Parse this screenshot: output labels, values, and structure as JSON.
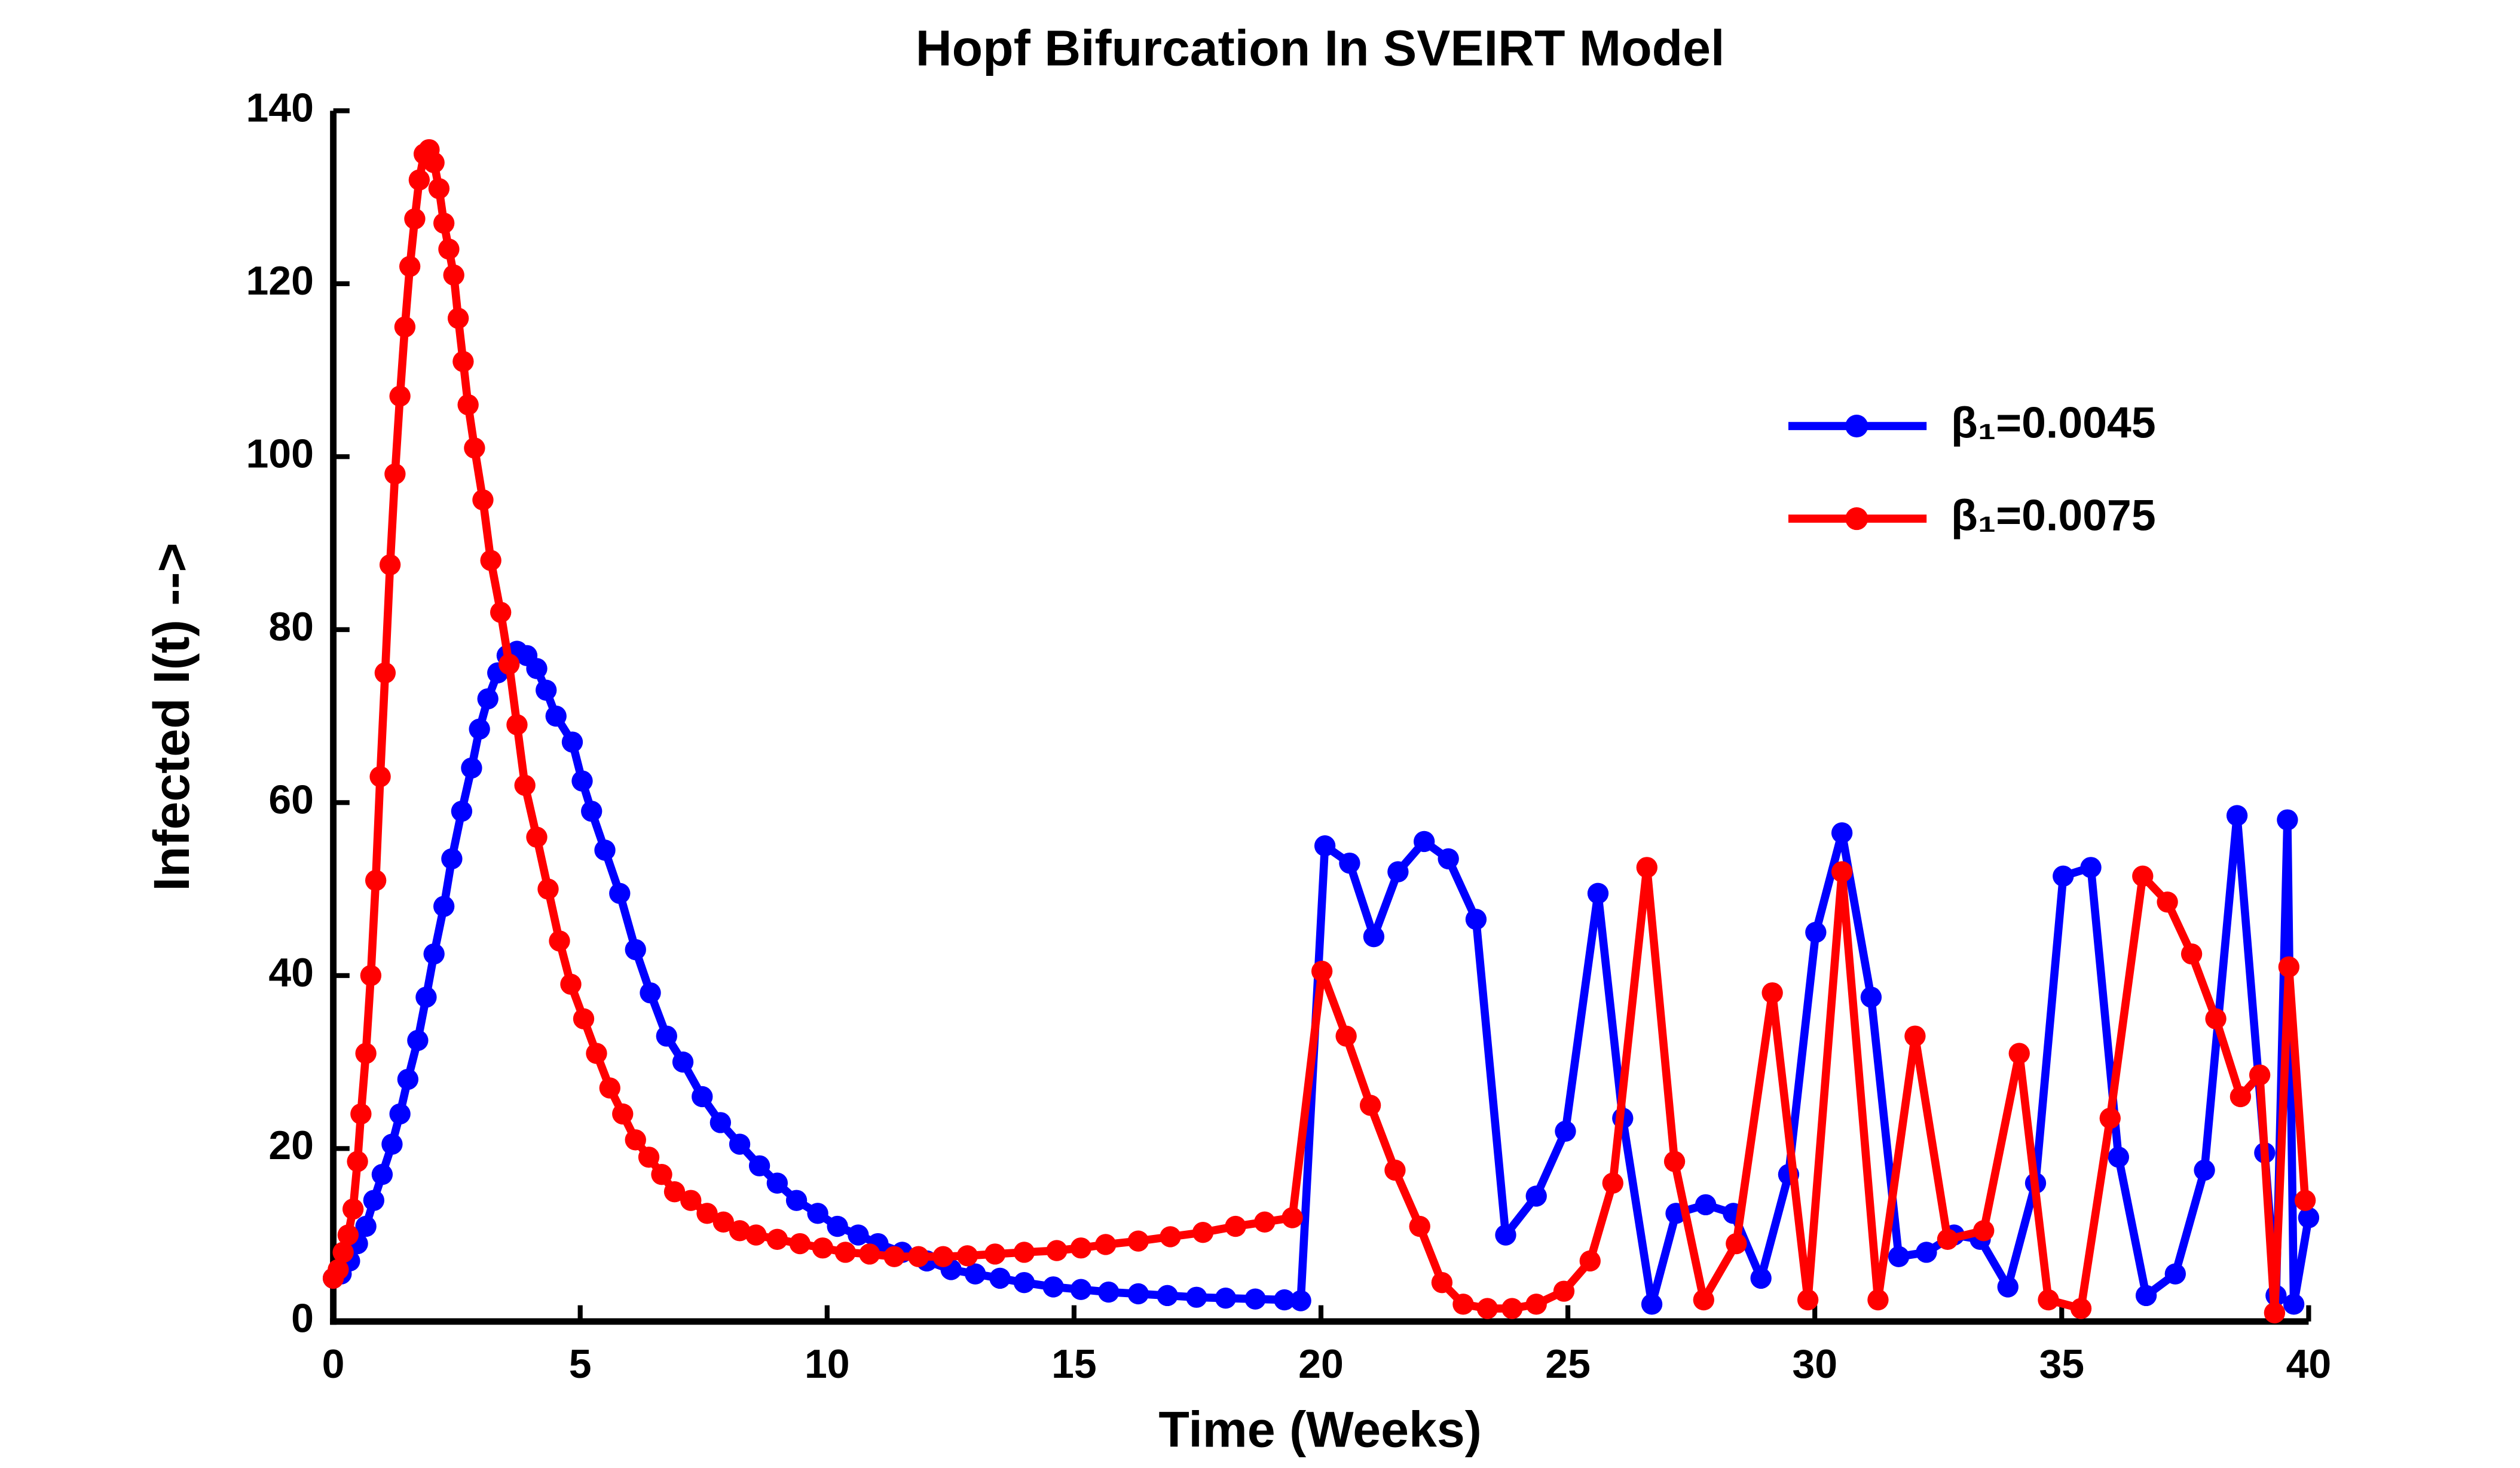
{
  "chart_data": {
    "type": "line",
    "title": "Hopf Bifurcation In SVEIRT Model",
    "x_label": "Time (Weeks)",
    "y_label": "Infected I(t) -->",
    "xlim": [
      0,
      40
    ],
    "xticks": [
      0,
      5,
      10,
      15,
      20,
      25,
      30,
      35,
      40
    ],
    "ylim": [
      0,
      140
    ],
    "yticks": [
      0,
      20,
      40,
      60,
      80,
      100,
      120,
      140
    ],
    "legend_position": "upper right",
    "grid": false,
    "series": [
      {
        "name": "β₁=0.0045",
        "color": "#0000ff",
        "x": [
          0,
          0.16,
          0.33,
          0.49,
          0.66,
          0.82,
          0.99,
          1.19,
          1.35,
          1.51,
          1.71,
          1.88,
          2.04,
          2.24,
          2.4,
          2.6,
          2.8,
          2.96,
          3.13,
          3.33,
          3.52,
          3.72,
          3.92,
          4.12,
          4.31,
          4.51,
          4.84,
          5.04,
          5.23,
          5.5,
          5.8,
          6.12,
          6.42,
          6.75,
          7.08,
          7.47,
          7.84,
          8.23,
          8.63,
          8.99,
          9.38,
          9.81,
          10.21,
          10.63,
          11.03,
          11.52,
          12.02,
          12.51,
          13.0,
          13.5,
          13.99,
          14.58,
          15.14,
          15.7,
          16.3,
          16.89,
          17.48,
          18.07,
          18.67,
          19.26,
          19.59,
          20.08,
          20.58,
          21.07,
          21.56,
          22.09,
          22.58,
          23.14,
          23.74,
          24.36,
          24.95,
          25.61,
          26.11,
          26.7,
          27.19,
          27.79,
          28.35,
          28.91,
          29.47,
          30.02,
          30.55,
          31.14,
          31.7,
          32.26,
          32.82,
          33.35,
          33.91,
          34.47,
          35.03,
          35.59,
          36.15,
          36.71,
          37.3,
          37.89,
          38.55,
          39.11,
          39.34,
          39.57,
          39.7,
          40
        ],
        "values": [
          5,
          5.5,
          7,
          9,
          11,
          14,
          17,
          20.5,
          24,
          28,
          32.5,
          37.5,
          42.5,
          48,
          53.5,
          59,
          64,
          68.5,
          72,
          75,
          77,
          77.5,
          77,
          75.5,
          73,
          70,
          67,
          62.5,
          59,
          54.5,
          49.5,
          43,
          38,
          33,
          30,
          26,
          23,
          20.5,
          18,
          16,
          14,
          12.5,
          11,
          10,
          9,
          8,
          7,
          6,
          5.5,
          5,
          4.5,
          4,
          3.7,
          3.4,
          3.2,
          3,
          2.8,
          2.7,
          2.6,
          2.5,
          2.4,
          55,
          53,
          44.5,
          52,
          55.5,
          53.5,
          46.5,
          10,
          14.5,
          22,
          49.5,
          23.5,
          2,
          12.5,
          13.5,
          12.5,
          5,
          17,
          45,
          56.5,
          37.5,
          7.5,
          8,
          10,
          9.5,
          4,
          16,
          51.5,
          52.5,
          19,
          3,
          5.5,
          17.5,
          58.5,
          19.5,
          3,
          58,
          2,
          12
        ]
      },
      {
        "name": "β₁=0.0075",
        "color": "#ff0000",
        "x": [
          0,
          0.1,
          0.2,
          0.3,
          0.4,
          0.49,
          0.56,
          0.66,
          0.76,
          0.86,
          0.95,
          1.05,
          1.15,
          1.25,
          1.35,
          1.45,
          1.55,
          1.65,
          1.74,
          1.84,
          1.94,
          2.04,
          2.14,
          2.24,
          2.34,
          2.44,
          2.53,
          2.63,
          2.73,
          2.86,
          3.03,
          3.19,
          3.39,
          3.56,
          3.72,
          3.88,
          4.12,
          4.35,
          4.58,
          4.81,
          5.07,
          5.33,
          5.6,
          5.86,
          6.12,
          6.39,
          6.65,
          6.91,
          7.24,
          7.57,
          7.9,
          8.23,
          8.56,
          8.99,
          9.45,
          9.91,
          10.37,
          10.86,
          11.36,
          11.85,
          12.35,
          12.84,
          13.4,
          13.99,
          14.65,
          15.14,
          15.64,
          16.3,
          16.95,
          17.61,
          18.27,
          18.86,
          19.42,
          20.02,
          20.51,
          21.0,
          21.5,
          22.0,
          22.45,
          22.88,
          23.37,
          23.87,
          24.36,
          24.92,
          25.45,
          25.91,
          26.6,
          27.16,
          27.75,
          28.41,
          29.14,
          29.86,
          30.55,
          31.28,
          32.03,
          32.69,
          33.42,
          34.14,
          34.73,
          35.39,
          35.98,
          36.64,
          37.14,
          37.63,
          38.12,
          38.62,
          39.01,
          39.31,
          39.6,
          39.93
        ],
        "values": [
          5,
          6,
          8,
          10,
          13,
          18.5,
          24,
          31,
          40,
          51,
          63,
          75,
          87.5,
          98,
          107,
          115,
          122,
          127.5,
          132,
          135,
          135.5,
          134,
          131,
          127,
          124,
          121,
          116,
          111,
          106,
          101,
          95,
          88,
          82,
          76,
          69,
          62,
          56,
          50,
          44,
          39,
          35,
          31,
          27,
          24,
          21,
          19,
          17,
          15,
          14,
          12.5,
          11.5,
          10.5,
          10,
          9.5,
          9,
          8.5,
          8,
          7.8,
          7.5,
          7.5,
          7.5,
          7.6,
          7.8,
          8,
          8.2,
          8.5,
          8.9,
          9.3,
          9.8,
          10.3,
          11,
          11.5,
          12,
          40.5,
          33,
          25,
          17.5,
          11,
          4.5,
          2,
          1.5,
          1.5,
          2,
          3.5,
          7,
          16,
          52.5,
          18.5,
          2.5,
          9,
          38,
          2.5,
          52,
          2.5,
          33,
          9.5,
          10.5,
          31,
          2.5,
          1.5,
          23.5,
          51.5,
          48.5,
          42.5,
          35,
          26,
          28.5,
          1,
          41,
          14
        ]
      }
    ]
  }
}
